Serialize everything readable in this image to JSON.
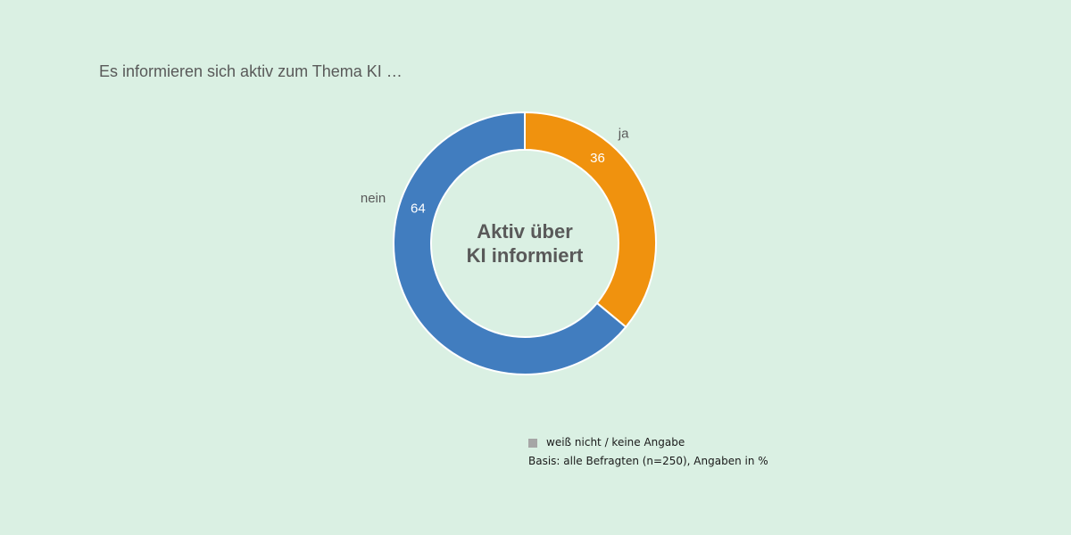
{
  "title": "Es informieren sich aktiv zum Thema KI …",
  "chart_data": {
    "type": "pie",
    "variant": "donut",
    "title": "Es informieren sich aktiv zum Thema KI …",
    "center_label": [
      "Aktiv über",
      "KI informiert"
    ],
    "slices": [
      {
        "label": "ja",
        "value": 36,
        "color": "#f0920e"
      },
      {
        "label": "nein",
        "value": 64,
        "color": "#417dbf"
      }
    ],
    "legend": {
      "placement": "bottom-right",
      "entries": [
        {
          "label": "weiß nicht / keine Angabe",
          "color": "#a6a6a6"
        }
      ]
    },
    "note": "Basis: alle Befragten (n=250), Angaben in %"
  }
}
